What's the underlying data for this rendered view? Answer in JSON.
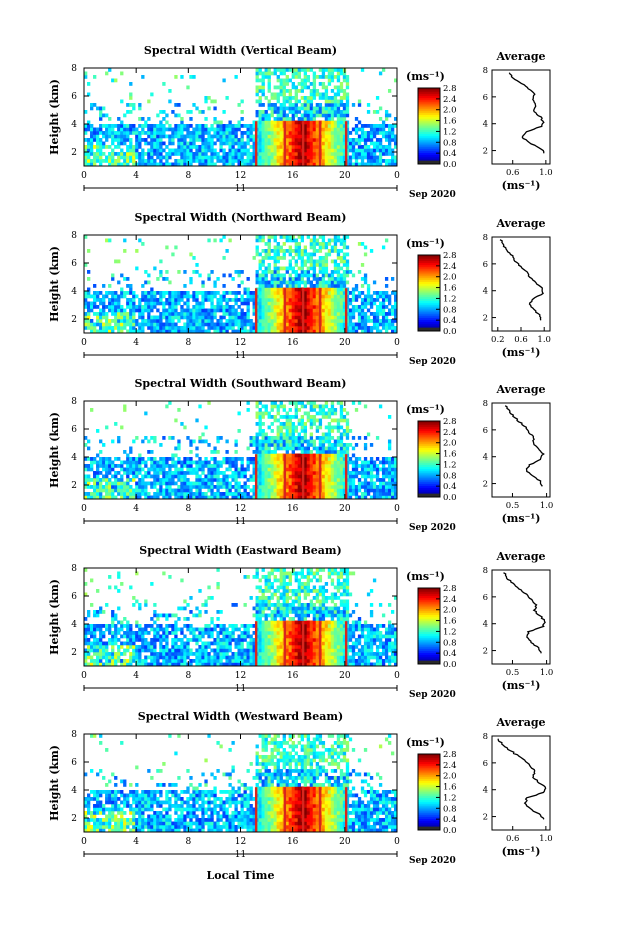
{
  "common": {
    "x_ticks": [
      "0",
      "4",
      "8",
      "12",
      "16",
      "20",
      "0"
    ],
    "day_label": "11",
    "month_label": "Sep 2020",
    "y_ticks": [
      "2",
      "4",
      "6",
      "8"
    ],
    "ylabel": "Height (km)",
    "colorbar_unit": "(ms⁻¹)",
    "colorbar_ticks": [
      "0.0",
      "0.4",
      "0.8",
      "1.2",
      "1.6",
      "2.0",
      "2.4",
      "2.8"
    ],
    "avg_title": "Average",
    "avg_unit": "(ms⁻¹)",
    "xlabel": "Local Time"
  },
  "chart_data": [
    {
      "type": "heatmap",
      "title": "Spectral Width (Vertical Beam)",
      "xlim": [
        0,
        24
      ],
      "ylim": [
        1,
        8
      ],
      "clim": [
        0,
        2.8
      ],
      "avg_ticks": [
        "0.6",
        "1.0"
      ],
      "avg_xlim": [
        0.35,
        1.05
      ],
      "avg_profile": [
        [
          1.8,
          0.98
        ],
        [
          2.2,
          0.93
        ],
        [
          2.6,
          0.8
        ],
        [
          3.0,
          0.72
        ],
        [
          3.4,
          0.77
        ],
        [
          3.8,
          0.95
        ],
        [
          4.2,
          0.97
        ],
        [
          4.6,
          0.92
        ],
        [
          5.0,
          0.85
        ],
        [
          5.4,
          0.88
        ],
        [
          5.8,
          0.83
        ],
        [
          6.2,
          0.86
        ],
        [
          6.6,
          0.8
        ],
        [
          7.0,
          0.7
        ],
        [
          7.4,
          0.6
        ],
        [
          7.8,
          0.55
        ]
      ]
    },
    {
      "type": "heatmap",
      "title": "Spectral Width (Northward Beam)",
      "xlim": [
        0,
        24
      ],
      "ylim": [
        1,
        8
      ],
      "clim": [
        0,
        2.8
      ],
      "avg_ticks": [
        "0.2",
        "0.6",
        "1.0"
      ],
      "avg_xlim": [
        0.1,
        1.1
      ],
      "avg_profile": [
        [
          1.8,
          0.95
        ],
        [
          2.2,
          0.92
        ],
        [
          2.6,
          0.82
        ],
        [
          3.0,
          0.75
        ],
        [
          3.4,
          0.8
        ],
        [
          3.8,
          0.98
        ],
        [
          4.2,
          0.97
        ],
        [
          4.6,
          0.85
        ],
        [
          5.0,
          0.75
        ],
        [
          5.4,
          0.7
        ],
        [
          5.8,
          0.6
        ],
        [
          6.2,
          0.5
        ],
        [
          6.6,
          0.45
        ],
        [
          7.0,
          0.35
        ],
        [
          7.4,
          0.3
        ],
        [
          7.8,
          0.25
        ]
      ]
    },
    {
      "type": "heatmap",
      "title": "Spectral Width (Southward Beam)",
      "xlim": [
        0,
        24
      ],
      "ylim": [
        1,
        8
      ],
      "clim": [
        0,
        2.8
      ],
      "avg_ticks": [
        "0.5",
        "1.0"
      ],
      "avg_xlim": [
        0.2,
        1.05
      ],
      "avg_profile": [
        [
          1.8,
          0.95
        ],
        [
          2.2,
          0.9
        ],
        [
          2.6,
          0.78
        ],
        [
          3.0,
          0.7
        ],
        [
          3.4,
          0.75
        ],
        [
          3.8,
          0.92
        ],
        [
          4.2,
          0.95
        ],
        [
          4.6,
          0.88
        ],
        [
          5.0,
          0.8
        ],
        [
          5.4,
          0.82
        ],
        [
          5.8,
          0.75
        ],
        [
          6.2,
          0.7
        ],
        [
          6.6,
          0.6
        ],
        [
          7.0,
          0.52
        ],
        [
          7.4,
          0.45
        ],
        [
          7.8,
          0.4
        ]
      ]
    },
    {
      "type": "heatmap",
      "title": "Spectral Width (Eastward Beam)",
      "xlim": [
        0,
        24
      ],
      "ylim": [
        1,
        8
      ],
      "clim": [
        0,
        2.8
      ],
      "avg_ticks": [
        "0.5",
        "1.0"
      ],
      "avg_xlim": [
        0.2,
        1.05
      ],
      "avg_profile": [
        [
          1.8,
          0.92
        ],
        [
          2.2,
          0.88
        ],
        [
          2.6,
          0.78
        ],
        [
          3.0,
          0.7
        ],
        [
          3.4,
          0.74
        ],
        [
          3.8,
          0.95
        ],
        [
          4.2,
          0.98
        ],
        [
          4.6,
          0.9
        ],
        [
          5.0,
          0.82
        ],
        [
          5.4,
          0.85
        ],
        [
          5.8,
          0.78
        ],
        [
          6.2,
          0.7
        ],
        [
          6.6,
          0.6
        ],
        [
          7.0,
          0.5
        ],
        [
          7.4,
          0.42
        ],
        [
          7.8,
          0.38
        ]
      ]
    },
    {
      "type": "heatmap",
      "title": "Spectral Width (Westward Beam)",
      "xlim": [
        0,
        24
      ],
      "ylim": [
        1,
        8
      ],
      "clim": [
        0,
        2.8
      ],
      "avg_ticks": [
        "0.6",
        "1.0"
      ],
      "avg_xlim": [
        0.35,
        1.05
      ],
      "avg_profile": [
        [
          1.8,
          0.98
        ],
        [
          2.2,
          0.92
        ],
        [
          2.6,
          0.8
        ],
        [
          3.0,
          0.74
        ],
        [
          3.4,
          0.78
        ],
        [
          3.8,
          0.97
        ],
        [
          4.2,
          0.99
        ],
        [
          4.6,
          0.9
        ],
        [
          5.0,
          0.84
        ],
        [
          5.4,
          0.87
        ],
        [
          5.8,
          0.8
        ],
        [
          6.2,
          0.75
        ],
        [
          6.6,
          0.65
        ],
        [
          7.0,
          0.55
        ],
        [
          7.4,
          0.48
        ],
        [
          7.8,
          0.42
        ]
      ]
    }
  ]
}
